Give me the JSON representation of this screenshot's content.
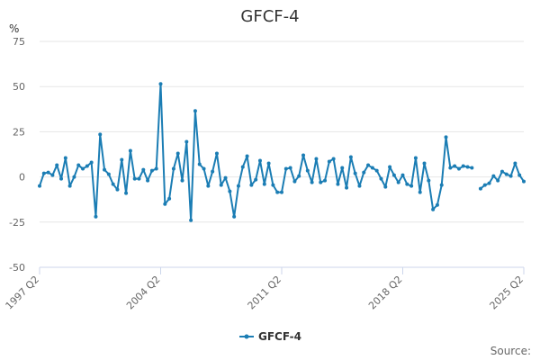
{
  "chart_data": {
    "type": "line",
    "title": "GFCF-4",
    "unit_label": "%",
    "ylim": [
      -50,
      75
    ],
    "yticks": [
      75,
      50,
      25,
      0,
      -25,
      -50
    ],
    "xticks": [
      "1997 Q2",
      "2004 Q2",
      "2011 Q2",
      "2018 Q2",
      "2025 Q2"
    ],
    "x_range": [
      "1997 Q2",
      "2025 Q2"
    ],
    "grid": true,
    "legend_position": "bottom-center",
    "series_color": "#1b7db4",
    "series": [
      {
        "name": "GFCF-4",
        "x": [
          "1997 Q2",
          "1997 Q3",
          "1997 Q4",
          "1998 Q1",
          "1998 Q2",
          "1998 Q3",
          "1998 Q4",
          "1999 Q1",
          "1999 Q2",
          "1999 Q3",
          "1999 Q4",
          "2000 Q1",
          "2000 Q2",
          "2000 Q3",
          "2000 Q4",
          "2001 Q1",
          "2001 Q2",
          "2001 Q3",
          "2001 Q4",
          "2002 Q1",
          "2002 Q2",
          "2002 Q3",
          "2002 Q4",
          "2003 Q1",
          "2003 Q2",
          "2003 Q3",
          "2003 Q4",
          "2004 Q1",
          "2004 Q2",
          "2004 Q3",
          "2004 Q4",
          "2005 Q1",
          "2005 Q2",
          "2005 Q3",
          "2005 Q4",
          "2006 Q1",
          "2006 Q2",
          "2006 Q3",
          "2006 Q4",
          "2007 Q1",
          "2007 Q2",
          "2007 Q3",
          "2007 Q4",
          "2008 Q1",
          "2008 Q2",
          "2008 Q3",
          "2008 Q4",
          "2009 Q1",
          "2009 Q2",
          "2009 Q3",
          "2009 Q4",
          "2010 Q1",
          "2010 Q2",
          "2010 Q3",
          "2010 Q4",
          "2011 Q1",
          "2011 Q2",
          "2011 Q3",
          "2011 Q4",
          "2012 Q1",
          "2012 Q2",
          "2012 Q3",
          "2012 Q4",
          "2013 Q1",
          "2013 Q2",
          "2013 Q3",
          "2013 Q4",
          "2014 Q1",
          "2014 Q2",
          "2014 Q3",
          "2014 Q4",
          "2015 Q1",
          "2015 Q2",
          "2015 Q3",
          "2015 Q4",
          "2016 Q1",
          "2016 Q2",
          "2016 Q3",
          "2016 Q4",
          "2017 Q1",
          "2017 Q2",
          "2017 Q3",
          "2017 Q4",
          "2018 Q1",
          "2018 Q2",
          "2018 Q3",
          "2018 Q4",
          "2019 Q1",
          "2019 Q2",
          "2019 Q3",
          "2019 Q4",
          "2020 Q1",
          "2020 Q2",
          "2020 Q3",
          "2020 Q4",
          "2021 Q1",
          "2021 Q2",
          "2021 Q3",
          "2021 Q4",
          "2022 Q1",
          "2022 Q2",
          "2022 Q3",
          "2022 Q4",
          "2023 Q1",
          "2023 Q2",
          "2023 Q3",
          "2023 Q4",
          "2024 Q1",
          "2024 Q2",
          "2024 Q3",
          "2024 Q4",
          "2025 Q1",
          "2025 Q2"
        ],
        "values": [
          -5,
          2,
          2.5,
          1,
          6.5,
          -1,
          10.5,
          -5,
          0,
          6.5,
          4.5,
          6,
          8,
          -22,
          23.5,
          4,
          1.5,
          -4,
          -7,
          9.5,
          -9,
          14.5,
          -1,
          -1,
          4,
          -2,
          3.5,
          4.5,
          51.5,
          -15,
          -12,
          4.5,
          13,
          -2,
          19.5,
          -24,
          36.5,
          7,
          4.5,
          -5,
          3,
          13,
          -4.5,
          -0.5,
          -8,
          -22,
          -5,
          5.5,
          11.5,
          -4.5,
          -1.5,
          9,
          -4,
          7.5,
          -4.5,
          -8.5,
          -8.5,
          4.5,
          5,
          -2.5,
          0.5,
          12,
          3.5,
          -3,
          10,
          -3,
          -2,
          8.5,
          10,
          -4,
          5,
          -6,
          11,
          2,
          -5,
          2.5,
          6.5,
          5,
          3.5,
          -1,
          -5.5,
          5.5,
          1,
          -3,
          1,
          -4,
          -5,
          10.5,
          -8.5,
          7.5,
          -2,
          -18,
          -15.5,
          -4.5,
          22,
          5,
          6,
          4.5,
          6,
          5.5,
          5,
          null,
          -6.5,
          -4.5,
          -3.5,
          0.5,
          -2,
          3,
          1.5,
          0.5,
          7.5,
          1,
          -2.5
        ]
      }
    ]
  },
  "legend": {
    "label": "GFCF-4"
  },
  "footer": {
    "source": "Source:"
  }
}
